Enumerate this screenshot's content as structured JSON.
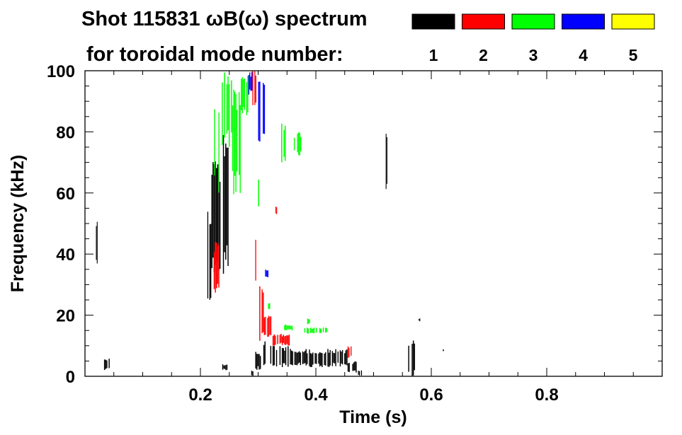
{
  "chart_data": {
    "type": "heatmap",
    "title": "Shot 115831 ωB(ω) spectrum",
    "subtitle": "for toroidal mode number:",
    "xlabel": "Time (s)",
    "ylabel": "Frequency (kHz)",
    "xlim": [
      0.0,
      1.0
    ],
    "ylim": [
      0,
      100
    ],
    "x_ticks": [
      0.2,
      0.4,
      0.6,
      0.8
    ],
    "x_tick_labels": [
      "0.2",
      "0.4",
      "0.6",
      "0.8"
    ],
    "y_ticks": [
      0,
      20,
      40,
      60,
      80,
      100
    ],
    "y_tick_labels": [
      "0",
      "20",
      "40",
      "60",
      "80",
      "100"
    ],
    "grid": false,
    "legend": {
      "placement": "top-right",
      "entries": [
        {
          "label": "1",
          "color": "#000000"
        },
        {
          "label": "2",
          "color": "#ff0000"
        },
        {
          "label": "3",
          "color": "#00ff00"
        },
        {
          "label": "4",
          "color": "#0000ff"
        },
        {
          "label": "5",
          "color": "#ffff00"
        }
      ]
    },
    "series": [
      {
        "mode": 1,
        "color": "#000000",
        "regions": [
          {
            "t": [
              0.019,
              0.022
            ],
            "f": [
              36,
              51
            ]
          },
          {
            "t": [
              0.033,
              0.045
            ],
            "f": [
              2,
              6
            ]
          },
          {
            "t": [
              0.212,
              0.219
            ],
            "f": [
              24,
              58
            ]
          },
          {
            "t": [
              0.219,
              0.237
            ],
            "f": [
              28,
              72
            ]
          },
          {
            "t": [
              0.237,
              0.249
            ],
            "f": [
              33,
              80
            ]
          },
          {
            "t": [
              0.236,
              0.247
            ],
            "f": [
              2,
              4
            ]
          },
          {
            "t": [
              0.288,
              0.292
            ],
            "f": [
              0,
              2
            ]
          },
          {
            "t": [
              0.295,
              0.305
            ],
            "f": [
              2,
              8
            ]
          },
          {
            "t": [
              0.305,
              0.325
            ],
            "f": [
              2,
              12
            ]
          },
          {
            "t": [
              0.325,
              0.355
            ],
            "f": [
              3,
              10
            ]
          },
          {
            "t": [
              0.355,
              0.39
            ],
            "f": [
              3,
              9
            ]
          },
          {
            "t": [
              0.39,
              0.42
            ],
            "f": [
              3,
              8
            ]
          },
          {
            "t": [
              0.42,
              0.455
            ],
            "f": [
              3,
              9
            ]
          },
          {
            "t": [
              0.455,
              0.473
            ],
            "f": [
              1,
              5
            ]
          },
          {
            "t": [
              0.473,
              0.48
            ],
            "f": [
              0,
              2
            ]
          },
          {
            "t": [
              0.521,
              0.524
            ],
            "f": [
              60,
              81
            ]
          },
          {
            "t": [
              0.558,
              0.572
            ],
            "f": [
              0,
              12
            ]
          },
          {
            "t": [
              0.578,
              0.581
            ],
            "f": [
              18,
              19
            ]
          },
          {
            "t": [
              0.62,
              0.622
            ],
            "f": [
              8,
              9
            ]
          }
        ]
      },
      {
        "mode": 2,
        "color": "#ff0000",
        "regions": [
          {
            "t": [
              0.223,
              0.233
            ],
            "f": [
              26,
              44
            ]
          },
          {
            "t": [
              0.29,
              0.297
            ],
            "f": [
              88,
              100
            ]
          },
          {
            "t": [
              0.295,
              0.302
            ],
            "f": [
              30,
              45
            ]
          },
          {
            "t": [
              0.302,
              0.31
            ],
            "f": [
              10,
              30
            ]
          },
          {
            "t": [
              0.31,
              0.325
            ],
            "f": [
              12,
              20
            ]
          },
          {
            "t": [
              0.325,
              0.355
            ],
            "f": [
              10,
              14
            ]
          },
          {
            "t": [
              0.455,
              0.462
            ],
            "f": [
              6,
              10
            ]
          },
          {
            "t": [
              0.33,
              0.333
            ],
            "f": [
              53,
              56
            ]
          }
        ]
      },
      {
        "mode": 3,
        "color": "#00ff00",
        "regions": [
          {
            "t": [
              0.22,
              0.235
            ],
            "f": [
              60,
              95
            ]
          },
          {
            "t": [
              0.235,
              0.255
            ],
            "f": [
              75,
              100
            ]
          },
          {
            "t": [
              0.255,
              0.27
            ],
            "f": [
              58,
              96
            ]
          },
          {
            "t": [
              0.27,
              0.285
            ],
            "f": [
              85,
              100
            ]
          },
          {
            "t": [
              0.3,
              0.308
            ],
            "f": [
              55,
              65
            ]
          },
          {
            "t": [
              0.315,
              0.325
            ],
            "f": [
              22,
              24
            ]
          },
          {
            "t": [
              0.34,
              0.35
            ],
            "f": [
              68,
              84
            ]
          },
          {
            "t": [
              0.345,
              0.36
            ],
            "f": [
              15,
              17
            ]
          },
          {
            "t": [
              0.36,
              0.375
            ],
            "f": [
              72,
              80
            ]
          },
          {
            "t": [
              0.38,
              0.42
            ],
            "f": [
              14,
              16
            ]
          },
          {
            "t": [
              0.385,
              0.39
            ],
            "f": [
              17,
              19
            ]
          }
        ]
      },
      {
        "mode": 4,
        "color": "#0000ff",
        "regions": [
          {
            "t": [
              0.283,
              0.292
            ],
            "f": [
              92,
              100
            ]
          },
          {
            "t": [
              0.3,
              0.312
            ],
            "f": [
              75,
              100
            ]
          },
          {
            "t": [
              0.312,
              0.318
            ],
            "f": [
              32,
              35
            ]
          }
        ]
      },
      {
        "mode": 5,
        "color": "#ffff00",
        "regions": []
      }
    ]
  }
}
